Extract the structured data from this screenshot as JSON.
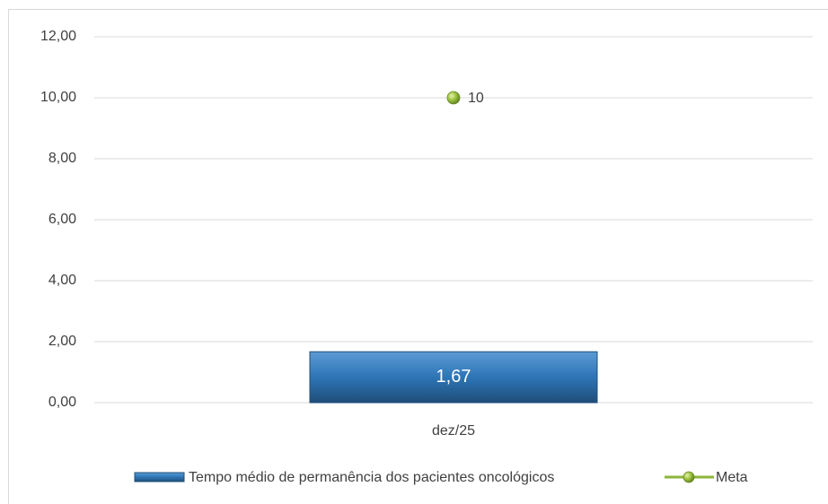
{
  "chart_data": {
    "type": "bar",
    "categories": [
      "dez/25"
    ],
    "series": [
      {
        "name": "Tempo médio de permanência dos pacientes oncológicos",
        "color": "#2e75b6",
        "values": [
          1.67
        ],
        "value_labels": [
          "1,67"
        ]
      },
      {
        "name": "Meta",
        "type": "line",
        "color": "#8cb43a",
        "values": [
          10
        ],
        "value_labels": [
          "10"
        ]
      }
    ],
    "ylim": [
      0,
      12
    ],
    "yticks": [
      {
        "value": 0,
        "label": "0,00"
      },
      {
        "value": 2,
        "label": "2,00"
      },
      {
        "value": 4,
        "label": "4,00"
      },
      {
        "value": 6,
        "label": "6,00"
      },
      {
        "value": 8,
        "label": "8,00"
      },
      {
        "value": 10,
        "label": "10,00"
      },
      {
        "value": 12,
        "label": "12,00"
      }
    ],
    "grid": true,
    "legend": "bottom"
  }
}
